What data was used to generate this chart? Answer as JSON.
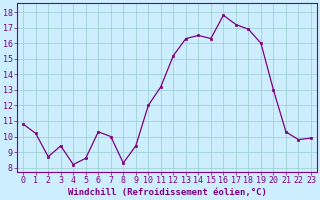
{
  "x": [
    0,
    1,
    2,
    3,
    4,
    5,
    6,
    7,
    8,
    9,
    10,
    11,
    12,
    13,
    14,
    15,
    16,
    17,
    18,
    19,
    20,
    21,
    22,
    23
  ],
  "y": [
    10.8,
    10.2,
    8.7,
    9.4,
    8.2,
    8.6,
    10.3,
    10.0,
    8.3,
    9.4,
    12.0,
    13.2,
    15.2,
    16.3,
    16.5,
    16.3,
    17.8,
    17.2,
    16.9,
    16.0,
    13.0,
    10.3,
    9.8,
    9.9
  ],
  "line_color": "#800080",
  "marker_color": "#800080",
  "bg_color": "#cceeff",
  "grid_color": "#99cccc",
  "xlabel": "Windchill (Refroidissement éolien,°C)",
  "xlabel_color": "#800080",
  "ylabel_ticks": [
    8,
    9,
    10,
    11,
    12,
    13,
    14,
    15,
    16,
    17,
    18
  ],
  "ylim": [
    7.7,
    18.6
  ],
  "xlim": [
    -0.5,
    23.5
  ],
  "tick_color": "#800080",
  "spine_color": "#800080",
  "axis_label_fontsize": 6.5,
  "tick_fontsize": 6.0
}
